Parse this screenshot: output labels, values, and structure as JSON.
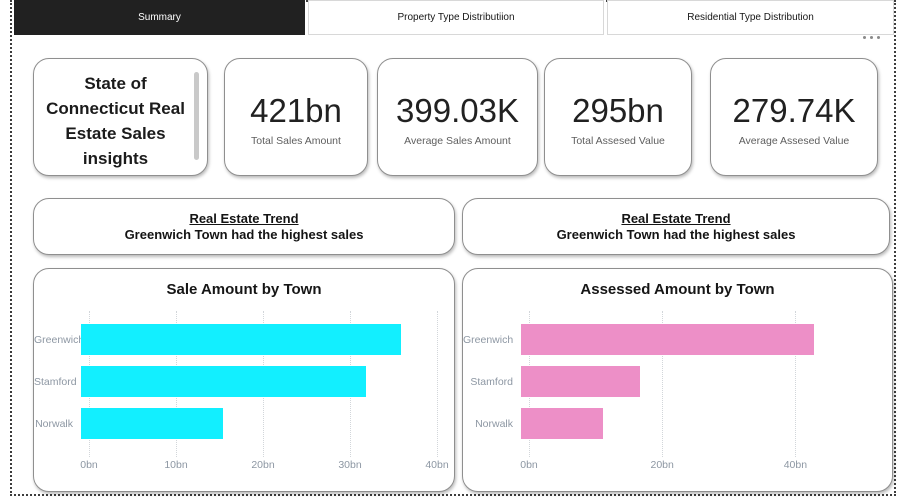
{
  "page": {
    "tabs": [
      {
        "label": "Summary",
        "active": true
      },
      {
        "label": "Property Type Distributiion",
        "active": false
      },
      {
        "label": "Residential Type Distribution",
        "active": false
      }
    ]
  },
  "title_card": {
    "text": "State of Connecticut  Real Estate Sales insights"
  },
  "kpis": [
    {
      "value": "421bn",
      "label": "Total Sales Amount"
    },
    {
      "value": "399.03K",
      "label": "Average Sales Amount"
    },
    {
      "value": "295bn",
      "label": "Total Assesed Value"
    },
    {
      "value": "279.74K",
      "label": "Average Assesed Value"
    }
  ],
  "insights": [
    {
      "title": "Real Estate Trend",
      "text": "Greenwich Town had the highest sales"
    },
    {
      "title": "Real Estate Trend",
      "text": "Greenwich Town had the highest sales"
    }
  ],
  "colors": {
    "bar_cyan": "#12EFFF",
    "bar_pink": "#ED8FC7",
    "tab_active_bg": "#212121",
    "axis_label": "#8D97A3"
  },
  "chart_data": [
    {
      "type": "bar",
      "orientation": "horizontal",
      "title": "Sale Amount by Town",
      "categories": [
        "Greenwich",
        "Stamford",
        "Norwalk"
      ],
      "values": [
        36,
        32,
        16
      ],
      "unit": "bn",
      "xlim": [
        0,
        40
      ],
      "xticks": [
        {
          "label": "0bn",
          "value": 0
        },
        {
          "label": "10bn",
          "value": 10
        },
        {
          "label": "20bn",
          "value": 20
        },
        {
          "label": "30bn",
          "value": 30
        },
        {
          "label": "40bn",
          "value": 40
        }
      ],
      "bar_color": "#12EFFF",
      "grid": true,
      "legend": "none"
    },
    {
      "type": "bar",
      "orientation": "horizontal",
      "title": "Assessed Amount by Town",
      "categories": [
        "Greenwich",
        "Stamford",
        "Norwalk"
      ],
      "values": [
        43,
        17.5,
        12
      ],
      "unit": "bn",
      "xlim": [
        0,
        50
      ],
      "xticks": [
        {
          "label": "0bn",
          "value": 0
        },
        {
          "label": "20bn",
          "value": 20
        },
        {
          "label": "40bn",
          "value": 40
        }
      ],
      "bar_color": "#ED8FC7",
      "grid": true,
      "legend": "none"
    }
  ]
}
